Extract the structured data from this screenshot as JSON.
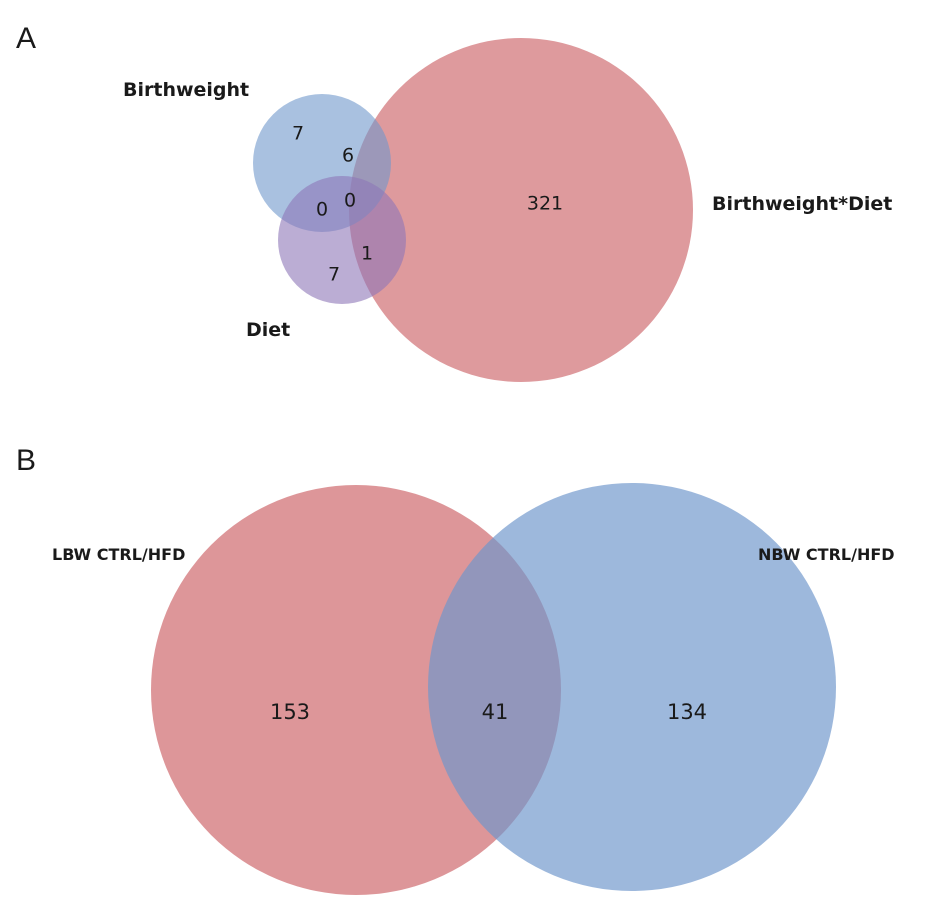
{
  "panel_a": {
    "letter": "A",
    "sets": {
      "birthweight": {
        "label": "Birthweight",
        "color": "#6f97cc"
      },
      "diet": {
        "label": "Diet",
        "color": "#8e76b8"
      },
      "interaction": {
        "label": "Birthweight*Diet",
        "color": "#cd6468"
      }
    },
    "regions": {
      "birthweight_only": "7",
      "birthweight_interaction": "6",
      "birthweight_diet": "0",
      "all_three": "0",
      "interaction_only": "321",
      "diet_interaction": "1",
      "diet_only": "7"
    }
  },
  "panel_b": {
    "letter": "B",
    "sets": {
      "lbw": {
        "label": "LBW CTRL/HFD",
        "color": "#cd6468"
      },
      "nbw": {
        "label": "NBW CTRL/HFD",
        "color": "#6f97cc"
      }
    },
    "regions": {
      "lbw_only": "153",
      "overlap": "41",
      "nbw_only": "134"
    }
  }
}
